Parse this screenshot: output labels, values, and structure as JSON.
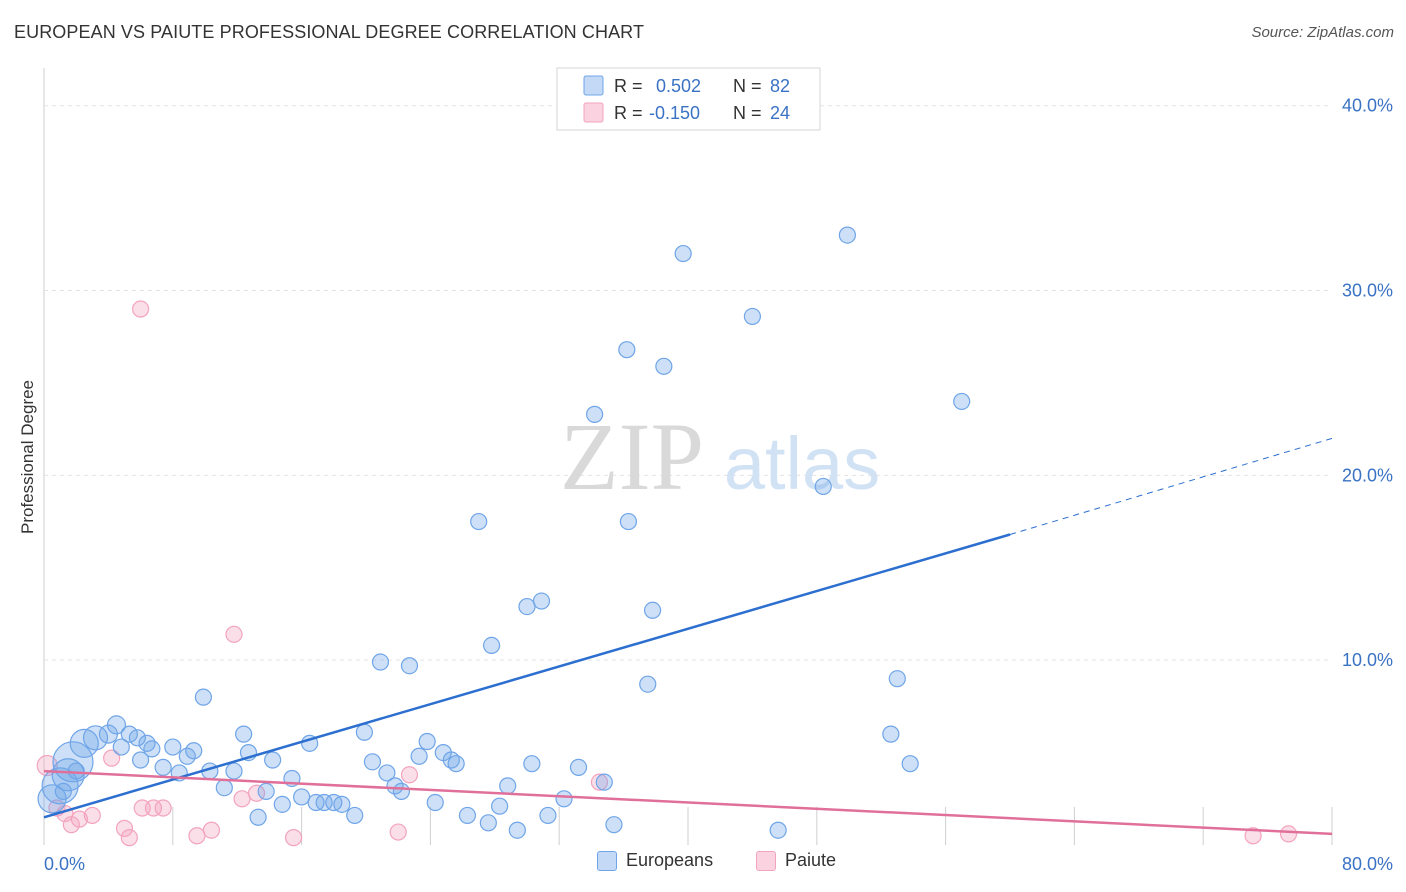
{
  "title": "EUROPEAN VS PAIUTE PROFESSIONAL DEGREE CORRELATION CHART",
  "source": "Source: ZipAtlas.com",
  "colors": {
    "blue": "#6fa5e8",
    "blue_line": "#2c6fcf",
    "pink": "#f3a3bd",
    "pink_line": "#e0709a",
    "tick_text": "#3a72c4"
  },
  "chart_data": {
    "type": "scatter",
    "xlabel": "",
    "ylabel": "Professional Degree",
    "xlim": [
      0,
      80
    ],
    "ylim": [
      0,
      41.5
    ],
    "x_ticks": [
      {
        "value": 0,
        "label": "0.0%"
      },
      {
        "value": 80,
        "label": "80.0%"
      }
    ],
    "y_ticks": [
      {
        "value": 10,
        "label": "10.0%"
      },
      {
        "value": 20,
        "label": "20.0%"
      },
      {
        "value": 30,
        "label": "30.0%"
      },
      {
        "value": 40,
        "label": "40.0%"
      }
    ],
    "legend": [
      {
        "name": "Europeans",
        "r_label": "R =",
        "r_value": "0.502",
        "n_label": "N =",
        "n_value": "82"
      },
      {
        "name": "Paiute",
        "r_label": "R =",
        "r_value": "-0.150",
        "n_label": "N =",
        "n_value": "24"
      }
    ],
    "watermark": {
      "zip": "ZIP",
      "atlas": "atlas"
    },
    "series": [
      {
        "name": "Europeans",
        "trend": {
          "x0": 0,
          "y0": 1.5,
          "x1": 60,
          "y1": 16.8,
          "dash_x1": 80,
          "dash_y1": 22.0
        },
        "points": [
          [
            0.5,
            2.5,
            14
          ],
          [
            1.0,
            3.2,
            18
          ],
          [
            1.5,
            3.8,
            16
          ],
          [
            1.8,
            4.5,
            20
          ],
          [
            2.5,
            5.5,
            14
          ],
          [
            3.2,
            5.8,
            12
          ],
          [
            4.0,
            6.0,
            9
          ],
          [
            4.5,
            6.5,
            9
          ],
          [
            4.8,
            5.3,
            8
          ],
          [
            5.3,
            6.0,
            8
          ],
          [
            5.8,
            5.8,
            8
          ],
          [
            6.4,
            5.5,
            8
          ],
          [
            6.7,
            5.2,
            8
          ],
          [
            7.4,
            4.2,
            8
          ],
          [
            8.0,
            5.3,
            8
          ],
          [
            8.4,
            3.9,
            8
          ],
          [
            8.9,
            4.8,
            8
          ],
          [
            9.3,
            5.1,
            8
          ],
          [
            9.9,
            8.0,
            8
          ],
          [
            10.3,
            4.0,
            8
          ],
          [
            11.2,
            3.1,
            8
          ],
          [
            11.8,
            4.0,
            8
          ],
          [
            12.4,
            6.0,
            8
          ],
          [
            12.7,
            5.0,
            8
          ],
          [
            13.3,
            1.5,
            8
          ],
          [
            13.8,
            2.9,
            8
          ],
          [
            14.2,
            4.6,
            8
          ],
          [
            14.8,
            2.2,
            8
          ],
          [
            15.4,
            3.6,
            8
          ],
          [
            16.0,
            2.6,
            8
          ],
          [
            16.5,
            5.5,
            8
          ],
          [
            16.9,
            2.3,
            8
          ],
          [
            17.4,
            2.3,
            8
          ],
          [
            18.0,
            2.3,
            8
          ],
          [
            18.5,
            2.2,
            8
          ],
          [
            19.3,
            1.6,
            8
          ],
          [
            19.9,
            6.1,
            8
          ],
          [
            20.4,
            4.5,
            8
          ],
          [
            20.9,
            9.9,
            8
          ],
          [
            21.3,
            3.9,
            8
          ],
          [
            21.8,
            3.2,
            8
          ],
          [
            22.2,
            2.9,
            8
          ],
          [
            22.7,
            9.7,
            8
          ],
          [
            23.3,
            4.8,
            8
          ],
          [
            23.8,
            5.6,
            8
          ],
          [
            24.3,
            2.3,
            8
          ],
          [
            24.8,
            5.0,
            8
          ],
          [
            25.3,
            4.6,
            8
          ],
          [
            25.6,
            4.4,
            8
          ],
          [
            26.3,
            1.6,
            8
          ],
          [
            27.0,
            17.5,
            8
          ],
          [
            27.6,
            1.2,
            8
          ],
          [
            27.8,
            10.8,
            8
          ],
          [
            28.3,
            2.1,
            8
          ],
          [
            28.8,
            3.2,
            8
          ],
          [
            29.4,
            0.8,
            8
          ],
          [
            30.0,
            12.9,
            8
          ],
          [
            30.3,
            4.4,
            8
          ],
          [
            30.9,
            13.2,
            8
          ],
          [
            31.3,
            1.6,
            8
          ],
          [
            32.3,
            2.5,
            8
          ],
          [
            33.2,
            4.2,
            8
          ],
          [
            34.2,
            23.3,
            8
          ],
          [
            34.8,
            3.4,
            8
          ],
          [
            35.4,
            1.1,
            8
          ],
          [
            36.2,
            26.8,
            8
          ],
          [
            36.3,
            17.5,
            8
          ],
          [
            37.5,
            8.7,
            8
          ],
          [
            37.8,
            12.7,
            8
          ],
          [
            38.5,
            25.9,
            8
          ],
          [
            39.7,
            32.0,
            8
          ],
          [
            44.0,
            28.6,
            8
          ],
          [
            45.6,
            0.8,
            8
          ],
          [
            48.4,
            19.4,
            8
          ],
          [
            49.9,
            33.0,
            8
          ],
          [
            52.6,
            6.0,
            8
          ],
          [
            53.0,
            9.0,
            8
          ],
          [
            53.8,
            4.4,
            8
          ],
          [
            57.0,
            24.0,
            8
          ],
          [
            1.2,
            2.9,
            8
          ],
          [
            2.0,
            4.0,
            8
          ],
          [
            6.0,
            4.6,
            8
          ]
        ]
      },
      {
        "name": "Paiute",
        "trend": {
          "x0": 0,
          "y0": 4.0,
          "x1": 80,
          "y1": 0.6
        },
        "points": [
          [
            0.2,
            4.3,
            10
          ],
          [
            0.8,
            2.0,
            8
          ],
          [
            1.3,
            1.7,
            8
          ],
          [
            1.7,
            1.1,
            8
          ],
          [
            2.2,
            1.4,
            8
          ],
          [
            3.0,
            1.6,
            8
          ],
          [
            4.2,
            4.7,
            8
          ],
          [
            5.0,
            0.9,
            8
          ],
          [
            5.3,
            0.4,
            8
          ],
          [
            6.0,
            29.0,
            8
          ],
          [
            6.1,
            2.0,
            8
          ],
          [
            6.8,
            2.0,
            8
          ],
          [
            7.4,
            2.0,
            8
          ],
          [
            9.5,
            0.5,
            8
          ],
          [
            10.4,
            0.8,
            8
          ],
          [
            11.8,
            11.4,
            8
          ],
          [
            12.3,
            2.5,
            8
          ],
          [
            13.2,
            2.8,
            8
          ],
          [
            15.5,
            0.4,
            8
          ],
          [
            22.0,
            0.7,
            8
          ],
          [
            22.7,
            3.8,
            8
          ],
          [
            34.5,
            3.4,
            8
          ],
          [
            75.1,
            0.5,
            8
          ],
          [
            77.3,
            0.6,
            8
          ]
        ]
      }
    ]
  }
}
